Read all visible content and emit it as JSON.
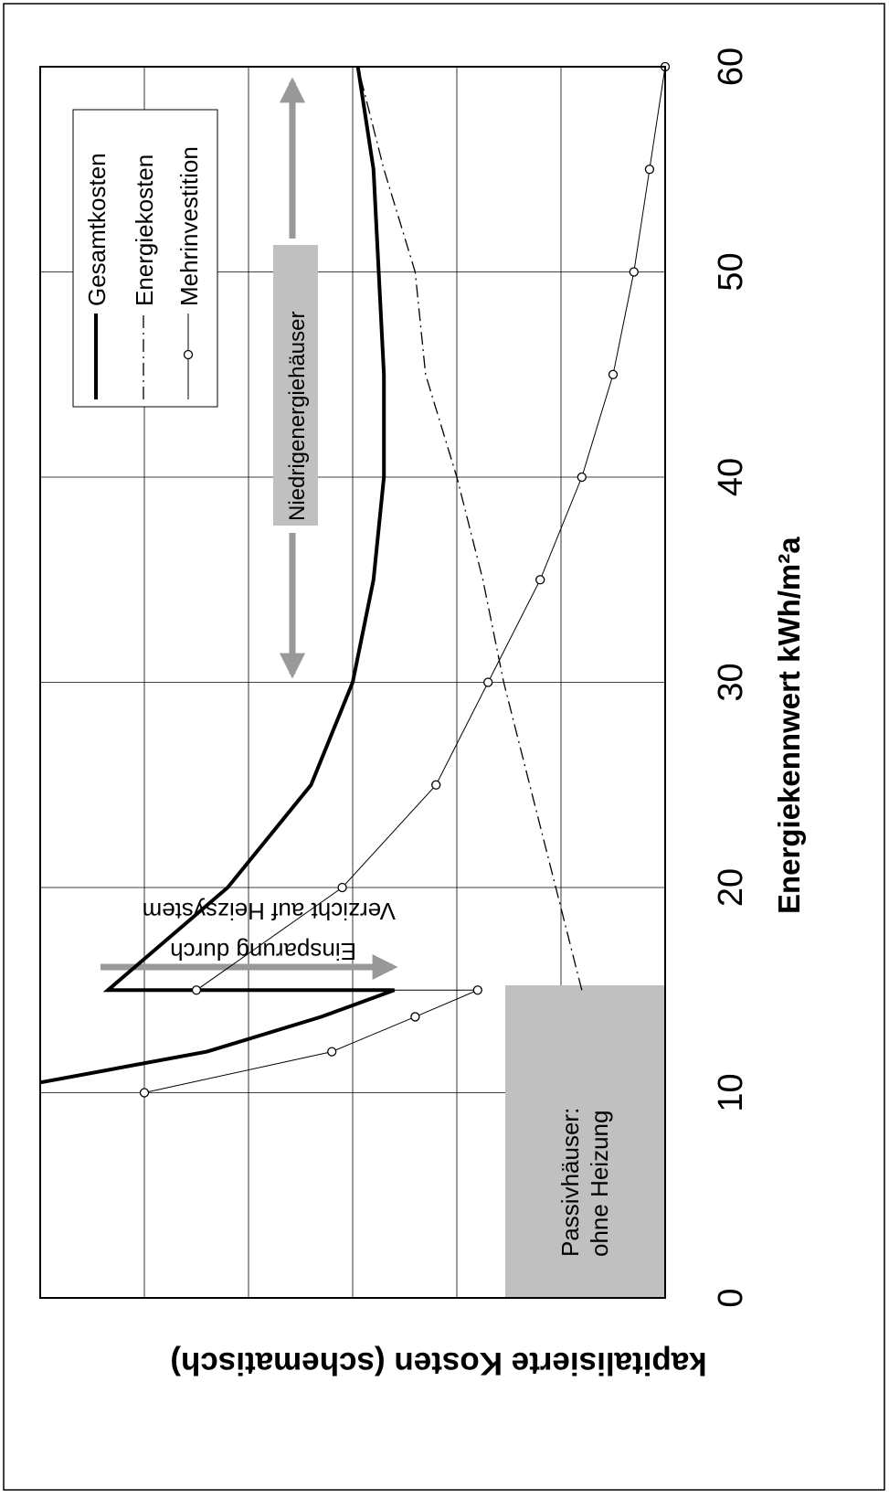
{
  "chart_data": {
    "type": "line",
    "title": "",
    "xlabel": "Energiekennwert kWh/m²a",
    "ylabel": "kapitalisierte Kosten (schematisch)",
    "xlim": [
      0,
      60
    ],
    "ylim": [
      0,
      6
    ],
    "x_ticks": [
      "0",
      "10",
      "20",
      "30",
      "40",
      "50",
      "60"
    ],
    "grid": true,
    "legend_position": "top-right",
    "orientation": "rotated 90° clockwise",
    "series": [
      {
        "name": "Gesamtkosten",
        "style": "thick-solid",
        "x": [
          10.5,
          12,
          13.7,
          15,
          15,
          20,
          25,
          30,
          35,
          40,
          45,
          50,
          55,
          60
        ],
        "y": [
          6,
          4.4,
          3.3,
          2.6,
          5.35,
          4.2,
          3.4,
          3.0,
          2.8,
          2.7,
          2.7,
          2.75,
          2.8,
          2.95
        ]
      },
      {
        "name": "Energiekosten",
        "style": "thin-dash-dot",
        "x": [
          15,
          20,
          25,
          30,
          35,
          40,
          45,
          50,
          55,
          60
        ],
        "y": [
          0.8,
          1.05,
          1.3,
          1.55,
          1.75,
          2.0,
          2.3,
          2.4,
          2.7,
          2.95
        ]
      },
      {
        "name": "Mehrinvestition",
        "style": "thin-solid-circles",
        "x": [
          10,
          12,
          13.7,
          15,
          15,
          20,
          25,
          30,
          35,
          40,
          45,
          50,
          55,
          60
        ],
        "y": [
          5.0,
          3.2,
          2.4,
          1.8,
          4.5,
          3.1,
          2.2,
          1.7,
          1.2,
          0.8,
          0.5,
          0.3,
          0.15,
          0.0
        ]
      }
    ],
    "annotations": [
      {
        "id": "passiv",
        "lines": [
          "Passivhäuser:",
          "ohne Heizung"
        ]
      },
      {
        "id": "niedrig",
        "text": "Niedrigenergiehäuser"
      },
      {
        "id": "einsparung",
        "lines": [
          "Einsparung durch",
          "Verzicht auf Heizsystem"
        ]
      }
    ],
    "colors": {
      "series": "#000000",
      "grid": "#000000",
      "annotation_box": "#c0c0c0",
      "arrow": "#999999"
    }
  }
}
